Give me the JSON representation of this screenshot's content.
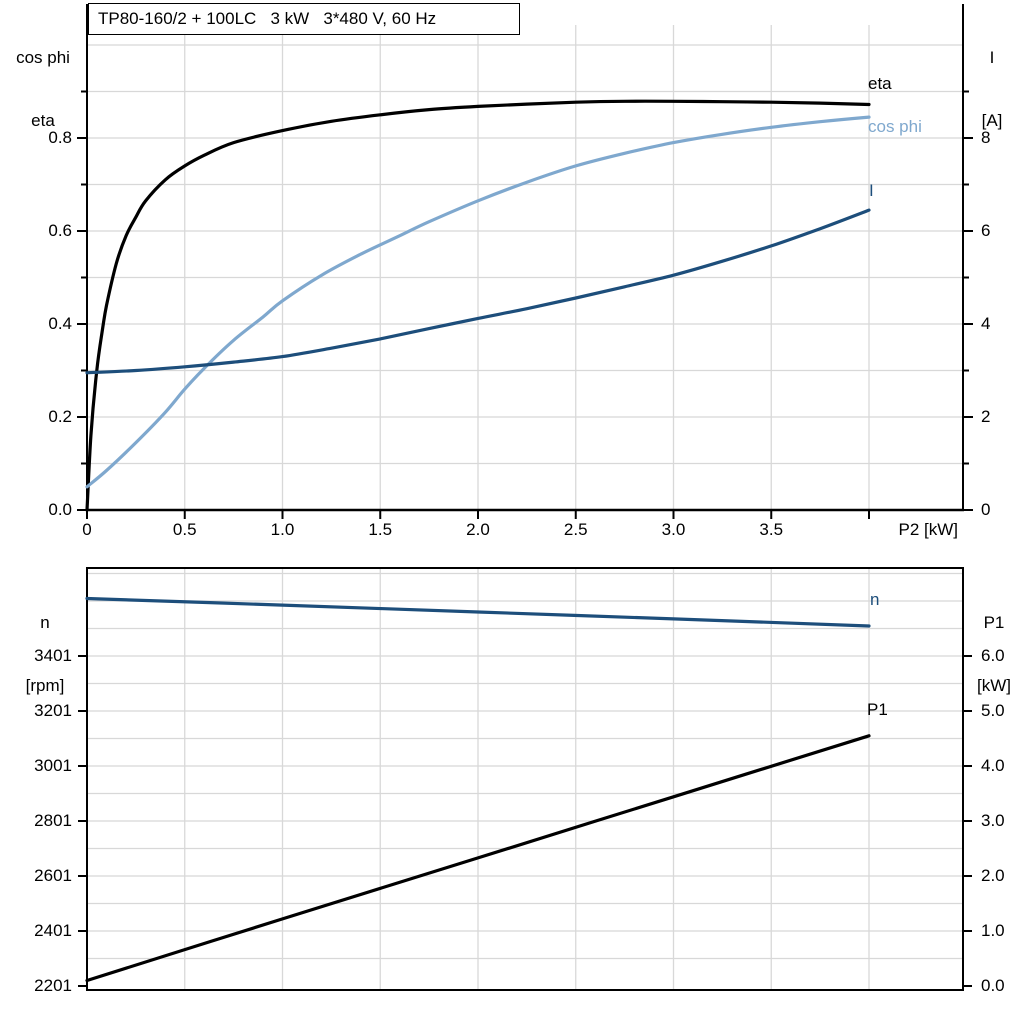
{
  "colors": {
    "eta": "#000000",
    "cos_phi": "#7FA8CE",
    "current": "#1D4E7B",
    "n": "#1D4E7B",
    "p1": "#000000",
    "grid": "#D8D8D8",
    "axis": "#000000"
  },
  "chart_data": [
    {
      "type": "line",
      "title": "TP80-160/2 + 100LC   3 kW   3*480 V, 60 Hz",
      "x_axis_label": "P2 [kW]",
      "left_axis_header": [
        "cos phi",
        "eta"
      ],
      "right_axis_header": [
        "I",
        "[A]"
      ],
      "xlim": [
        0,
        4.48
      ],
      "ylim_left": [
        0,
        1.09
      ],
      "ylim_right": [
        0,
        10.9
      ],
      "grid": true,
      "x_ticks": {
        "values": [
          0,
          0.5,
          1,
          1.5,
          2,
          2.5,
          3,
          3.5,
          4
        ],
        "labels": [
          "0",
          "0.5",
          "1.0",
          "1.5",
          "2.0",
          "2.5",
          "3.0",
          "3.5",
          ""
        ]
      },
      "left_ticks": {
        "values": [
          0,
          0.2,
          0.4,
          0.6,
          0.8
        ],
        "labels": [
          "0.0",
          "0.2",
          "0.4",
          "0.6",
          "0.8"
        ]
      },
      "right_ticks": {
        "values": [
          0,
          2,
          4,
          6,
          8
        ],
        "labels": [
          "0",
          "2",
          "4",
          "6",
          "8"
        ]
      },
      "series": [
        {
          "name": "eta",
          "label": "eta",
          "axis": "left",
          "color_key": "eta",
          "points": [
            [
              0,
              0
            ],
            [
              0.02,
              0.16
            ],
            [
              0.05,
              0.3
            ],
            [
              0.08,
              0.39
            ],
            [
              0.1,
              0.44
            ],
            [
              0.15,
              0.53
            ],
            [
              0.2,
              0.59
            ],
            [
              0.25,
              0.63
            ],
            [
              0.3,
              0.665
            ],
            [
              0.4,
              0.71
            ],
            [
              0.5,
              0.74
            ],
            [
              0.6,
              0.763
            ],
            [
              0.75,
              0.79
            ],
            [
              1.0,
              0.816
            ],
            [
              1.25,
              0.836
            ],
            [
              1.5,
              0.85
            ],
            [
              1.75,
              0.861
            ],
            [
              2.0,
              0.868
            ],
            [
              2.25,
              0.873
            ],
            [
              2.5,
              0.877
            ],
            [
              2.75,
              0.879
            ],
            [
              3.0,
              0.879
            ],
            [
              3.25,
              0.878
            ],
            [
              3.5,
              0.877
            ],
            [
              3.75,
              0.875
            ],
            [
              4.0,
              0.872
            ]
          ]
        },
        {
          "name": "cos_phi",
          "label": "cos phi",
          "axis": "left",
          "color_key": "cos_phi",
          "points": [
            [
              0,
              0.05
            ],
            [
              0.1,
              0.085
            ],
            [
              0.25,
              0.145
            ],
            [
              0.4,
              0.21
            ],
            [
              0.5,
              0.26
            ],
            [
              0.6,
              0.305
            ],
            [
              0.75,
              0.365
            ],
            [
              0.9,
              0.415
            ],
            [
              1.0,
              0.45
            ],
            [
              1.2,
              0.505
            ],
            [
              1.4,
              0.55
            ],
            [
              1.6,
              0.59
            ],
            [
              1.75,
              0.62
            ],
            [
              2.0,
              0.665
            ],
            [
              2.25,
              0.705
            ],
            [
              2.5,
              0.74
            ],
            [
              2.75,
              0.767
            ],
            [
              3.0,
              0.79
            ],
            [
              3.25,
              0.808
            ],
            [
              3.5,
              0.823
            ],
            [
              3.75,
              0.835
            ],
            [
              4.0,
              0.845
            ]
          ]
        },
        {
          "name": "current",
          "label": "I",
          "axis": "right",
          "color_key": "current",
          "points": [
            [
              0,
              2.95
            ],
            [
              0.25,
              3.0
            ],
            [
              0.5,
              3.08
            ],
            [
              0.75,
              3.18
            ],
            [
              1.0,
              3.3
            ],
            [
              1.25,
              3.48
            ],
            [
              1.5,
              3.68
            ],
            [
              1.75,
              3.9
            ],
            [
              2.0,
              4.12
            ],
            [
              2.25,
              4.33
            ],
            [
              2.5,
              4.56
            ],
            [
              2.75,
              4.8
            ],
            [
              3.0,
              5.05
            ],
            [
              3.25,
              5.35
            ],
            [
              3.5,
              5.68
            ],
            [
              3.75,
              6.05
            ],
            [
              4.0,
              6.45
            ]
          ]
        }
      ]
    },
    {
      "type": "line",
      "left_axis_header": [
        "n",
        "[rpm]"
      ],
      "right_axis_header": [
        "P1",
        "[kW]"
      ],
      "xlim": [
        0,
        4.48
      ],
      "ylim_left_rpm": [
        2201,
        3728
      ],
      "ylim_right": [
        0,
        7.6
      ],
      "grid": true,
      "left_ticks": {
        "values": [
          2201,
          2401,
          2601,
          2801,
          3001,
          3201,
          3401
        ],
        "labels": [
          "2201",
          "2401",
          "2601",
          "2801",
          "3001",
          "3201",
          "3401"
        ]
      },
      "right_ticks": {
        "values": [
          0,
          1,
          2,
          3,
          4,
          5,
          6
        ],
        "labels": [
          "0.0",
          "1.0",
          "2.0",
          "3.0",
          "4.0",
          "5.0",
          "6.0"
        ]
      },
      "series": [
        {
          "name": "n",
          "label": "n",
          "axis": "left",
          "color_key": "n",
          "points": [
            [
              0,
              3610
            ],
            [
              1,
              3586
            ],
            [
              2,
              3561
            ],
            [
              3,
              3536
            ],
            [
              4,
              3510
            ]
          ]
        },
        {
          "name": "p1",
          "label": "P1",
          "axis": "right",
          "color_key": "p1",
          "points": [
            [
              0,
              0.1
            ],
            [
              1,
              1.22
            ],
            [
              2,
              2.33
            ],
            [
              3,
              3.44
            ],
            [
              4,
              4.55
            ]
          ]
        }
      ]
    }
  ]
}
